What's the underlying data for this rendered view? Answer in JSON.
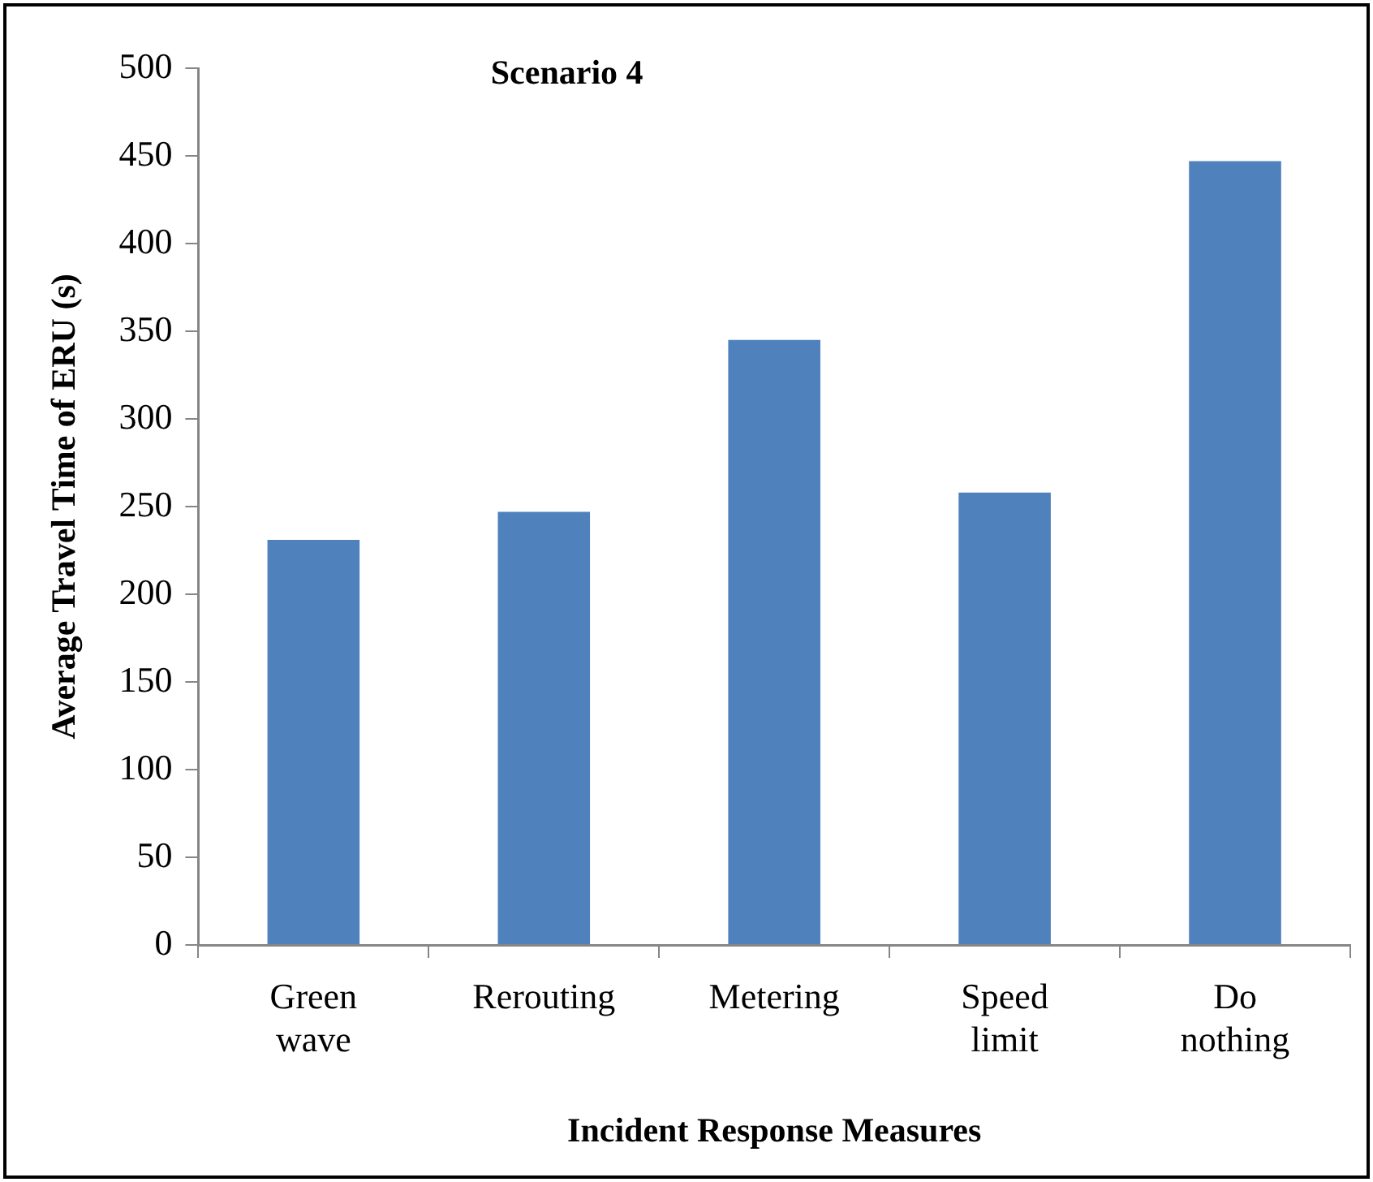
{
  "chart_data": {
    "type": "bar",
    "title": "Scenario 4",
    "xlabel": "Incident Response Measures",
    "ylabel": "Average Travel Time of ERU (s)",
    "categories": [
      "Green wave",
      "Rerouting",
      "Metering",
      "Speed limit",
      "Do nothing"
    ],
    "values": [
      231,
      247,
      345,
      258,
      447
    ],
    "color": "#4f81bd",
    "ylim": [
      0,
      500
    ],
    "yticks": [
      0,
      50,
      100,
      150,
      200,
      250,
      300,
      350,
      400,
      450,
      500
    ],
    "grid": false,
    "legend": false
  }
}
